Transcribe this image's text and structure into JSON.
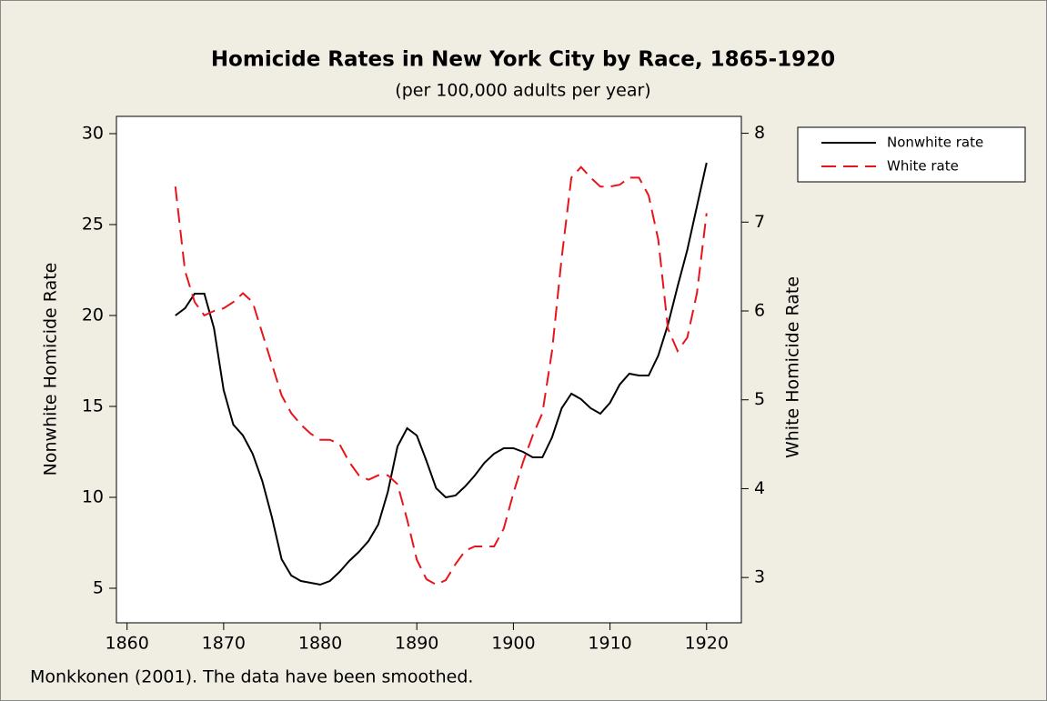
{
  "chart_data": {
    "type": "line",
    "title": "Homicide Rates in New York City by Race, 1865-1920",
    "subtitle": "(per 100,000 adults per year)",
    "ylabel": "Nonwhite Homicide Rate",
    "y2label": "White Homicide Rate",
    "note": "Monkkonen (2001). The data have been smoothed.",
    "x": [
      1865,
      1866,
      1867,
      1868,
      1869,
      1870,
      1871,
      1872,
      1873,
      1874,
      1875,
      1876,
      1877,
      1878,
      1879,
      1880,
      1881,
      1882,
      1883,
      1884,
      1885,
      1886,
      1887,
      1888,
      1889,
      1890,
      1891,
      1892,
      1893,
      1894,
      1895,
      1896,
      1897,
      1898,
      1899,
      1900,
      1901,
      1902,
      1903,
      1904,
      1905,
      1906,
      1907,
      1908,
      1909,
      1910,
      1911,
      1912,
      1913,
      1914,
      1915,
      1916,
      1917,
      1918,
      1919,
      1920
    ],
    "series": [
      {
        "name": "Nonwhite rate",
        "color": "#000000",
        "dashed": false,
        "values": [
          20.0,
          20.4,
          21.2,
          21.2,
          19.3,
          15.9,
          14.0,
          13.4,
          12.4,
          10.9,
          8.9,
          6.6,
          5.7,
          5.4,
          5.3,
          5.2,
          5.4,
          5.9,
          6.5,
          7.0,
          7.6,
          8.5,
          10.3,
          12.8,
          13.8,
          13.4,
          12.0,
          10.5,
          10.0,
          10.1,
          10.6,
          11.2,
          11.9,
          12.4,
          12.7,
          12.7,
          12.5,
          12.2,
          12.2,
          13.3,
          14.9,
          15.7,
          15.4,
          14.9,
          14.6,
          15.2,
          16.2,
          16.8,
          16.7,
          16.7,
          17.8,
          19.5,
          21.6,
          23.6,
          26.0,
          28.4
        ]
      },
      {
        "name": "White rate",
        "color": "#e8141c",
        "dashed": true,
        "axis": "y2",
        "values": [
          7.4,
          6.45,
          6.1,
          5.95,
          6.0,
          6.03,
          6.1,
          6.2,
          6.1,
          5.75,
          5.4,
          5.05,
          4.85,
          4.72,
          4.62,
          4.55,
          4.55,
          4.5,
          4.3,
          4.15,
          4.1,
          4.15,
          4.15,
          4.05,
          3.65,
          3.2,
          2.98,
          2.92,
          2.97,
          3.15,
          3.3,
          3.35,
          3.35,
          3.35,
          3.55,
          3.95,
          4.3,
          4.6,
          4.85,
          5.55,
          6.6,
          7.5,
          7.62,
          7.5,
          7.4,
          7.4,
          7.42,
          7.5,
          7.5,
          7.3,
          6.8,
          5.8,
          5.55,
          5.7,
          6.2,
          7.1
        ]
      }
    ],
    "xlim": [
      1858.9,
      1923.6
    ],
    "xticks": [
      1860,
      1870,
      1880,
      1890,
      1900,
      1910,
      1920
    ],
    "ylim": [
      3.1,
      30.95
    ],
    "yticks": [
      5,
      10,
      15,
      20,
      25,
      30
    ],
    "y2lim": [
      2.49,
      8.19
    ],
    "y2ticks": [
      3,
      4,
      5,
      6,
      7,
      8
    ],
    "legend": "right"
  }
}
